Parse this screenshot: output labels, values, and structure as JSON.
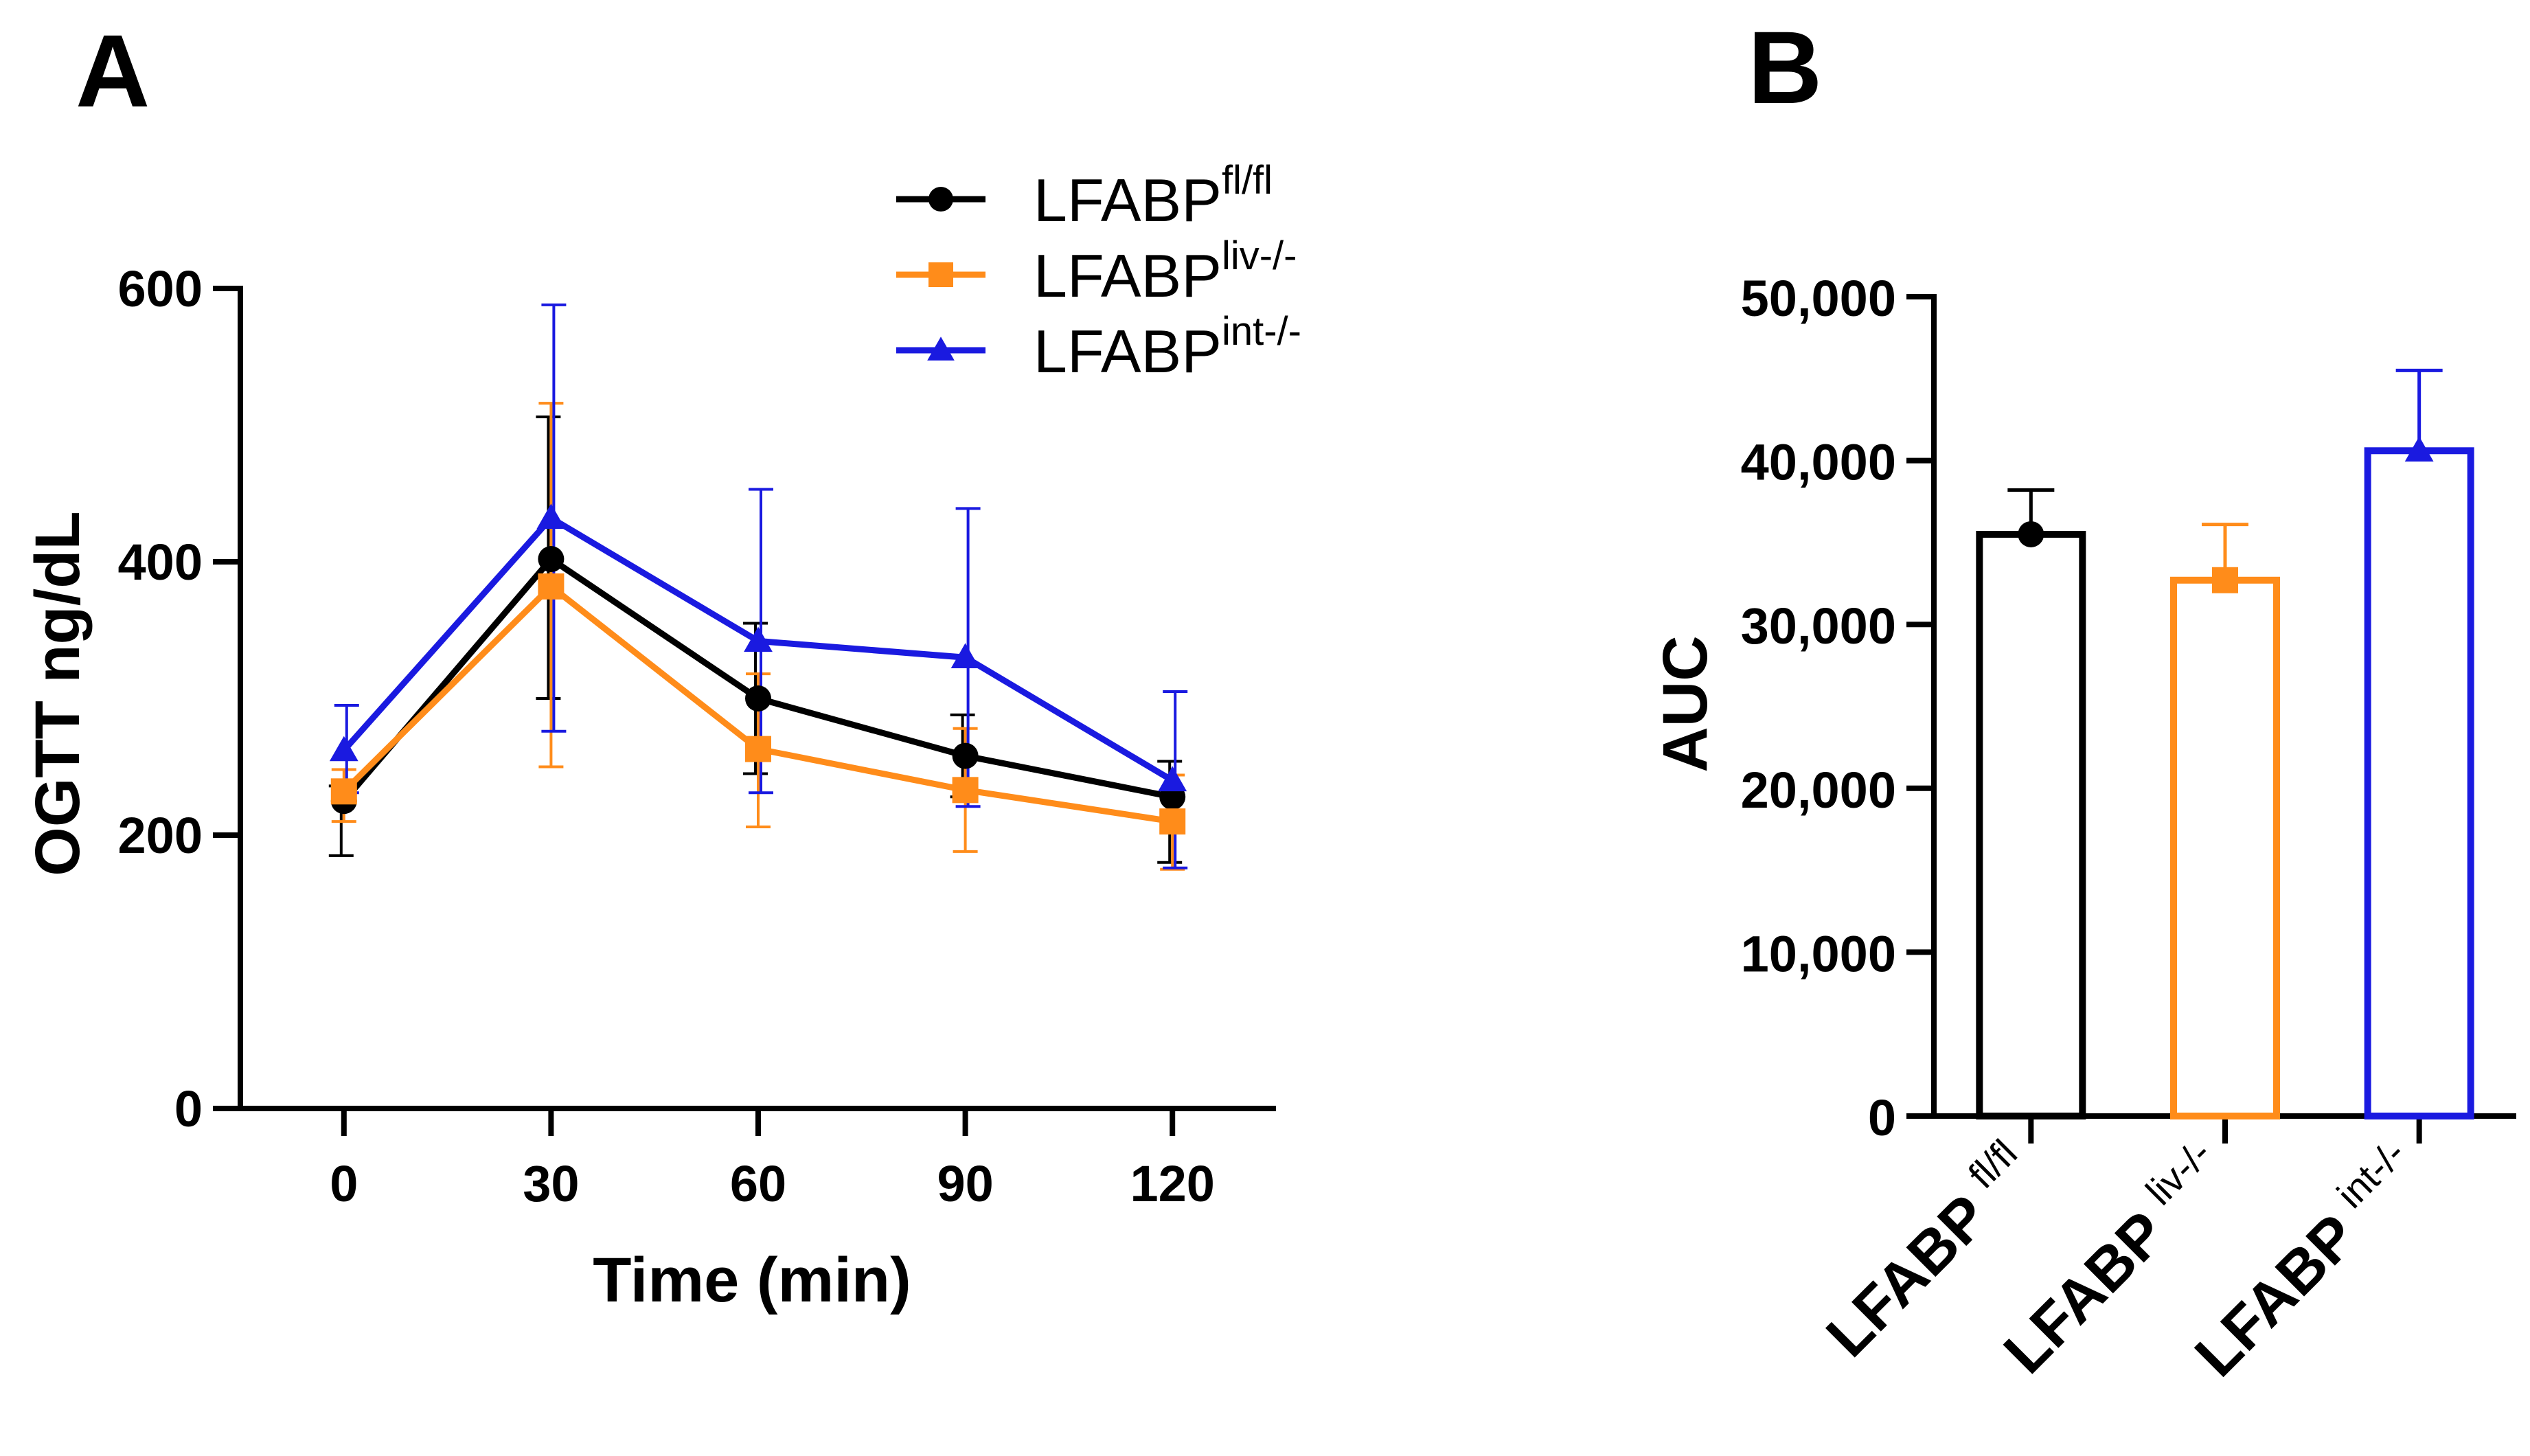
{
  "colors": {
    "axis": "#000000",
    "background": "#ffffff"
  },
  "chart_data": [
    {
      "panel": "A",
      "type": "line",
      "title": "",
      "xlabel": "Time (min)",
      "ylabel": "OGTT ng/dL",
      "x": [
        0,
        30,
        60,
        90,
        120
      ],
      "x_ticks": [
        "0",
        "30",
        "60",
        "90",
        "120"
      ],
      "xlim": [
        -15,
        135
      ],
      "ylim": [
        0,
        600
      ],
      "y_ticks": [
        "0",
        "200",
        "400",
        "600"
      ],
      "y_tick_values": [
        0,
        200,
        400,
        600
      ],
      "grid": false,
      "legend_position": "top-right",
      "series": [
        {
          "name": "LFABP",
          "superscript": "fl/fl",
          "color": "#000000",
          "marker": "circle",
          "values": [
            225,
            402,
            300,
            258,
            228
          ],
          "err_upper": [
            236,
            506,
            355,
            288,
            254
          ],
          "err_lower": [
            185,
            300,
            245,
            228,
            180
          ]
        },
        {
          "name": "LFABP",
          "superscript": "liv-/-",
          "color": "#ff8c1a",
          "marker": "square",
          "values": [
            232,
            382,
            263,
            233,
            210
          ],
          "err_upper": [
            248,
            516,
            318,
            278,
            244
          ],
          "err_lower": [
            210,
            250,
            206,
            188,
            175
          ]
        },
        {
          "name": "LFABP",
          "superscript": "int-/-",
          "color": "#1a1ae0",
          "marker": "triangle",
          "values": [
            262,
            432,
            342,
            330,
            240
          ],
          "err_upper": [
            295,
            588,
            453,
            439,
            305
          ],
          "err_lower": [
            231,
            276,
            231,
            221,
            176
          ]
        }
      ]
    },
    {
      "panel": "B",
      "type": "bar",
      "title": "",
      "xlabel": "",
      "ylabel": "AUC",
      "ylim": [
        0,
        50000
      ],
      "y_ticks": [
        "0",
        "10,000",
        "20,000",
        "30,000",
        "40,000",
        "50,000"
      ],
      "y_tick_values": [
        0,
        10000,
        20000,
        30000,
        40000,
        50000
      ],
      "grid": false,
      "categories": [
        "LFABP fl/fl",
        "LFABP liv-/-",
        "LFABP int-/-"
      ],
      "category_labels": [
        {
          "base": "LFABP",
          "superscript": "fl/fl"
        },
        {
          "base": "LFABP",
          "superscript": "liv-/-"
        },
        {
          "base": "LFABP",
          "superscript": "int-/-"
        }
      ],
      "values": [
        35500,
        32700,
        40600
      ],
      "err_upper": [
        38200,
        36100,
        45500
      ],
      "bar_colors": [
        "#000000",
        "#ff8c1a",
        "#1a1ae0"
      ],
      "markers": [
        "circle",
        "square",
        "triangle"
      ]
    }
  ]
}
